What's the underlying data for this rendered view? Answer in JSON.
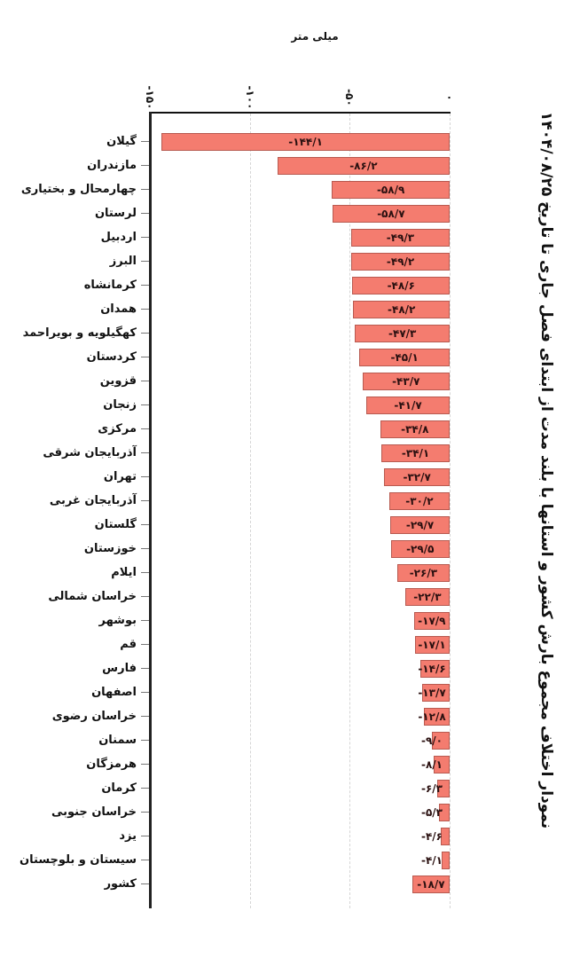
{
  "chart_data": {
    "type": "bar",
    "orientation": "horizontal",
    "title": "نمودار اختلاف مجموع بارش کشور و استانها با بلند مدت از ابتدای فصل جاری تا تاریخ ۱۴۰۴/۰۸/۲۵",
    "xlabel": "میلی متر",
    "ylabel": "",
    "xlim": [
      -150,
      0
    ],
    "x_ticks": [
      -150,
      -100,
      -50,
      0
    ],
    "x_tick_labels": [
      "-۱۵۰",
      "-۱۰۰",
      "-۵۰",
      "۰"
    ],
    "grid": true,
    "bar_color": "#f47c6f",
    "bar_border_color": "#b85a50",
    "categories": [
      "گیلان",
      "مازندران",
      "چهارمحال و بختیاری",
      "لرستان",
      "اردبیل",
      "البرز",
      "کرمانشاه",
      "همدان",
      "کهگیلویه و بویراحمد",
      "کردستان",
      "قزوین",
      "زنجان",
      "مرکزی",
      "آذربایجان شرقی",
      "تهران",
      "آذربایجان غربی",
      "گلستان",
      "خوزستان",
      "ایلام",
      "خراسان شمالی",
      "بوشهر",
      "قم",
      "فارس",
      "اصفهان",
      "خراسان رضوی",
      "سمنان",
      "هرمزگان",
      "کرمان",
      "خراسان جنوبی",
      "یزد",
      "سیستان و بلوچستان",
      "کشور"
    ],
    "values": [
      -144.1,
      -86.2,
      -58.9,
      -58.7,
      -49.3,
      -49.2,
      -48.6,
      -48.2,
      -47.3,
      -45.1,
      -43.7,
      -41.7,
      -34.8,
      -34.1,
      -32.7,
      -30.2,
      -29.7,
      -29.5,
      -26.3,
      -22.3,
      -17.9,
      -17.1,
      -14.6,
      -13.7,
      -12.8,
      -9.0,
      -8.1,
      -6.3,
      -5.3,
      -4.6,
      -4.1,
      -18.7
    ],
    "value_labels": [
      "-۱۴۴/۱",
      "-۸۶/۲",
      "-۵۸/۹",
      "-۵۸/۷",
      "-۴۹/۳",
      "-۴۹/۲",
      "-۴۸/۶",
      "-۴۸/۲",
      "-۴۷/۳",
      "-۴۵/۱",
      "-۴۳/۷",
      "-۴۱/۷",
      "-۳۴/۸",
      "-۳۴/۱",
      "-۳۲/۷",
      "-۳۰/۲",
      "-۲۹/۷",
      "-۲۹/۵",
      "-۲۶/۳",
      "-۲۲/۳",
      "-۱۷/۹",
      "-۱۷/۱",
      "-۱۴/۶",
      "-۱۳/۷",
      "-۱۲/۸",
      "-۹/۰",
      "-۸/۱",
      "-۶/۳",
      "-۵/۳",
      "-۴/۶",
      "-۴/۱",
      "-۱۸/۷"
    ]
  }
}
